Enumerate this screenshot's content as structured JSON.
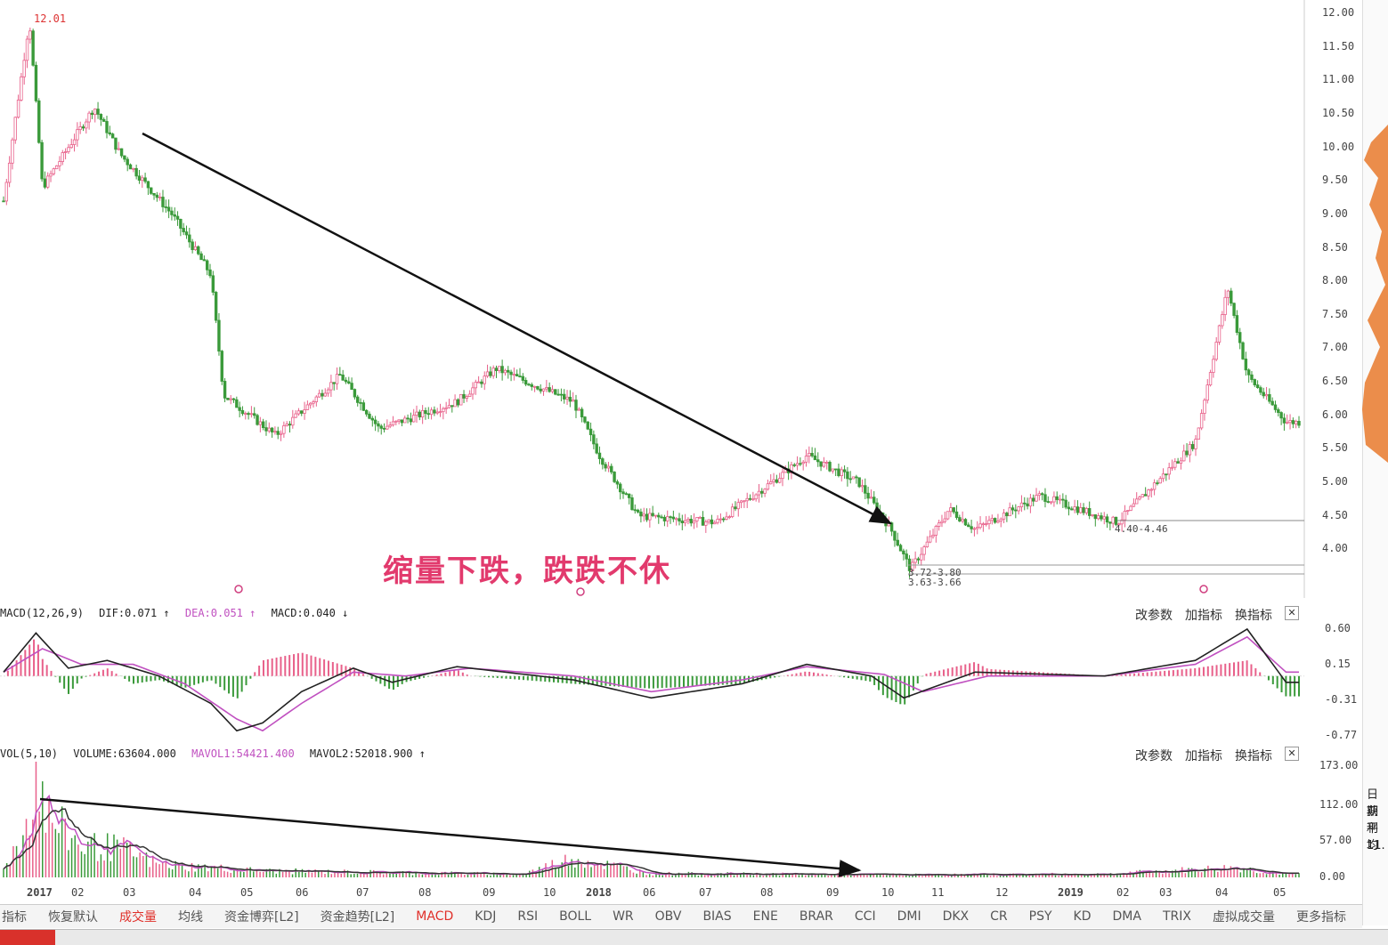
{
  "chart_data": [
    {
      "type": "candlestick",
      "ylim": [
        3.5,
        12.0
      ],
      "y_ticks": [
        "12.00",
        "11.50",
        "11.00",
        "10.50",
        "10.00",
        "9.50",
        "9.00",
        "8.50",
        "8.00",
        "7.50",
        "7.00",
        "6.50",
        "6.00",
        "5.50",
        "5.00",
        "4.50",
        "4.00"
      ],
      "y_tick_values": [
        12,
        11.5,
        11,
        10.5,
        10,
        9.5,
        9,
        8.5,
        8,
        7.5,
        7,
        6.5,
        6,
        5.5,
        5,
        4.5,
        4
      ],
      "price_path": [
        [
          0,
          9.2
        ],
        [
          0.02,
          11.9
        ],
        [
          0.03,
          9.4
        ],
        [
          0.07,
          10.6
        ],
        [
          0.09,
          9.9
        ],
        [
          0.13,
          9.0
        ],
        [
          0.16,
          8.1
        ],
        [
          0.17,
          6.3
        ],
        [
          0.21,
          5.7
        ],
        [
          0.26,
          6.6
        ],
        [
          0.29,
          5.8
        ],
        [
          0.35,
          6.2
        ],
        [
          0.38,
          6.7
        ],
        [
          0.44,
          6.2
        ],
        [
          0.46,
          5.4
        ],
        [
          0.49,
          4.5
        ],
        [
          0.55,
          4.4
        ],
        [
          0.6,
          5.1
        ],
        [
          0.62,
          5.4
        ],
        [
          0.66,
          5.0
        ],
        [
          0.685,
          4.3
        ],
        [
          0.7,
          3.7
        ],
        [
          0.73,
          4.6
        ],
        [
          0.75,
          4.3
        ],
        [
          0.8,
          4.8
        ],
        [
          0.86,
          4.4
        ],
        [
          0.88,
          4.8
        ],
        [
          0.92,
          5.6
        ],
        [
          0.945,
          7.9
        ],
        [
          0.96,
          6.6
        ],
        [
          0.99,
          5.9
        ]
      ],
      "annotations": {
        "high": "12.01",
        "low_label": "3.72-3.80",
        "low_label2": "3.63-3.66",
        "range_label": "4.40-4.46"
      },
      "text_annotation": "缩量下跌，跌跌不休"
    },
    {
      "type": "line",
      "title": "MACD(12,26,9)",
      "legend": [
        "DIF:0.071 ↑",
        "DEA:0.051 ↑",
        "MACD:0.040 ↓"
      ],
      "y_ticks": [
        "0.60",
        "0.15",
        "-0.31",
        "-0.77"
      ],
      "y_tick_values": [
        0.6,
        0.15,
        -0.31,
        -0.77
      ],
      "ylim": [
        -0.8,
        0.68
      ],
      "dif_path": [
        [
          0,
          0.05
        ],
        [
          0.025,
          0.55
        ],
        [
          0.05,
          0.1
        ],
        [
          0.08,
          0.2
        ],
        [
          0.12,
          0.0
        ],
        [
          0.16,
          -0.35
        ],
        [
          0.18,
          -0.7
        ],
        [
          0.2,
          -0.6
        ],
        [
          0.23,
          -0.2
        ],
        [
          0.27,
          0.1
        ],
        [
          0.3,
          -0.08
        ],
        [
          0.35,
          0.12
        ],
        [
          0.44,
          -0.05
        ],
        [
          0.5,
          -0.28
        ],
        [
          0.57,
          -0.1
        ],
        [
          0.62,
          0.15
        ],
        [
          0.67,
          0.0
        ],
        [
          0.695,
          -0.28
        ],
        [
          0.75,
          0.05
        ],
        [
          0.85,
          0.0
        ],
        [
          0.92,
          0.2
        ],
        [
          0.96,
          0.6
        ],
        [
          0.99,
          -0.08
        ]
      ],
      "dea_path": [
        [
          0,
          0.05
        ],
        [
          0.03,
          0.35
        ],
        [
          0.06,
          0.15
        ],
        [
          0.1,
          0.15
        ],
        [
          0.14,
          -0.1
        ],
        [
          0.18,
          -0.55
        ],
        [
          0.2,
          -0.7
        ],
        [
          0.23,
          -0.35
        ],
        [
          0.27,
          0.05
        ],
        [
          0.31,
          0.0
        ],
        [
          0.36,
          0.1
        ],
        [
          0.44,
          0.0
        ],
        [
          0.5,
          -0.2
        ],
        [
          0.57,
          -0.05
        ],
        [
          0.62,
          0.12
        ],
        [
          0.68,
          0.02
        ],
        [
          0.71,
          -0.2
        ],
        [
          0.76,
          0.0
        ],
        [
          0.85,
          0.0
        ],
        [
          0.92,
          0.15
        ],
        [
          0.96,
          0.5
        ],
        [
          0.99,
          0.05
        ]
      ],
      "buttons": [
        "改参数",
        "加指标",
        "换指标"
      ]
    },
    {
      "type": "bar",
      "title": "VOL(5,10)",
      "legend": [
        "VOLUME:63604.000",
        "MAVOL1:54421.400",
        "MAVOL2:52018.900 ↑"
      ],
      "y_ticks": [
        "173.00",
        "112.00",
        "57.00",
        "0.00"
      ],
      "y_tick_values": [
        173,
        112,
        57,
        0
      ],
      "ylim": [
        0,
        180
      ],
      "vol_profile": [
        [
          0,
          20
        ],
        [
          0.015,
          60
        ],
        [
          0.025,
          173
        ],
        [
          0.035,
          90
        ],
        [
          0.06,
          50
        ],
        [
          0.09,
          45
        ],
        [
          0.12,
          20
        ],
        [
          0.2,
          10
        ],
        [
          0.4,
          5
        ],
        [
          0.44,
          30
        ],
        [
          0.5,
          6
        ],
        [
          0.7,
          4
        ],
        [
          0.85,
          5
        ],
        [
          0.95,
          15
        ],
        [
          0.99,
          5
        ]
      ],
      "buttons": [
        "改参数",
        "加指标",
        "换指标"
      ]
    }
  ],
  "x_axis": [
    "2017",
    "02",
    "03",
    "04",
    "05",
    "06",
    "07",
    "08",
    "09",
    "10",
    "2018",
    "06",
    "07",
    "08",
    "09",
    "10",
    "11",
    "12",
    "2019",
    "02",
    "03",
    "04",
    "05"
  ],
  "tabs": [
    "指标",
    "恢复默认",
    "成交量",
    "均线",
    "资金博弈[L2]",
    "资金趋势[L2]",
    "MACD",
    "KDJ",
    "RSI",
    "BOLL",
    "WR",
    "OBV",
    "BIAS",
    "ENE",
    "BRAR",
    "CCI",
    "DMI",
    "DKX",
    "CR",
    "PSY",
    "KD",
    "DMA",
    "TRIX",
    "虚拟成交量",
    "更多指标"
  ],
  "active_tabs": [
    "成交量",
    "MACD"
  ],
  "right_panel_text": [
    "日期",
    "获利",
    "平均",
    "11."
  ],
  "colors": {
    "up": "#e8608a",
    "down": "#3a9a3a",
    "dif": "#222222",
    "dea": "#c050c0",
    "annotation": "#e23a6d"
  }
}
